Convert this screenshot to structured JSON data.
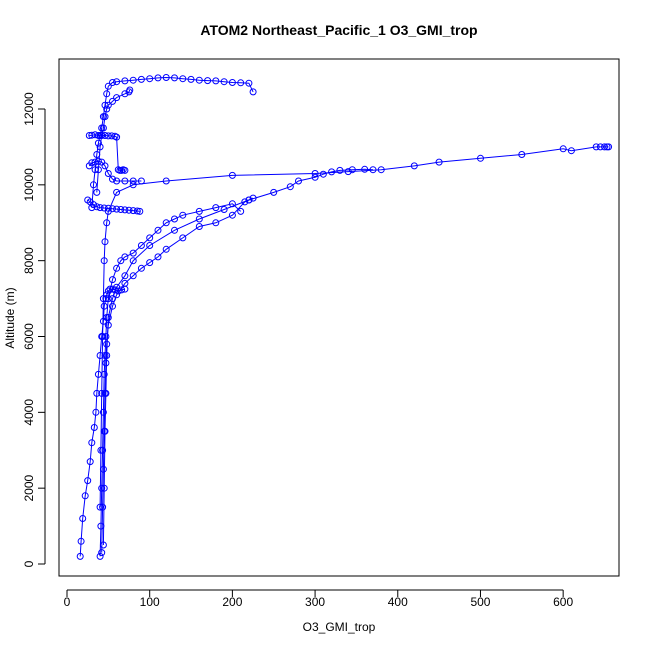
{
  "chart_data": {
    "type": "line",
    "title": "ATOM2 Northeast_Pacific_1 O3_GMI_trop",
    "xlabel": "O3_GMI_trop",
    "ylabel": "Altitude (m)",
    "xlim": [
      0,
      660
    ],
    "ylim": [
      0,
      13000
    ],
    "x_ticks": [
      0,
      100,
      200,
      300,
      400,
      500,
      600
    ],
    "y_ticks": [
      0,
      2000,
      4000,
      6000,
      8000,
      10000,
      12000
    ],
    "x_tick_labels": [
      "0",
      "100",
      "200",
      "300",
      "400",
      "500",
      "600"
    ],
    "y_tick_labels": [
      "0",
      "2000",
      "4000",
      "6000",
      "8000",
      "10000",
      "12000"
    ],
    "grid": false,
    "legend": "none",
    "series_color": "#0000ff",
    "marker": "open-circle",
    "series": [
      {
        "x": [
          16,
          17,
          19,
          22,
          25,
          28,
          30,
          33,
          35,
          36,
          38,
          40,
          42,
          44,
          45,
          47,
          48,
          50,
          52,
          55,
          58,
          62,
          66,
          70
        ],
        "y": [
          200,
          600,
          1200,
          1800,
          2200,
          2700,
          3200,
          3600,
          4000,
          4500,
          5000,
          5500,
          6000,
          6400,
          6800,
          7000,
          7100,
          7200,
          7250,
          7250,
          7230,
          7200,
          7230,
          7250
        ]
      },
      {
        "x": [
          40,
          41,
          42,
          43,
          44,
          45,
          46,
          47,
          48,
          50,
          55,
          60,
          65,
          70,
          80,
          90,
          100,
          110,
          120,
          130,
          140,
          160,
          180,
          200,
          210
        ],
        "y": [
          200,
          1000,
          2000,
          3000,
          4000,
          5000,
          5500,
          6000,
          6500,
          7000,
          7500,
          7800,
          8000,
          8100,
          8200,
          8400,
          8600,
          8800,
          9000,
          9100,
          9200,
          9300,
          9400,
          9500,
          9300
        ]
      },
      {
        "x": [
          42,
          43,
          44,
          45,
          46,
          47,
          48,
          50,
          55,
          60,
          70,
          80,
          90,
          100,
          110,
          120,
          140,
          160,
          180,
          200,
          215,
          220,
          225
        ],
        "y": [
          300,
          1500,
          2500,
          3500,
          4500,
          5300,
          5800,
          6300,
          6800,
          7100,
          7400,
          7600,
          7800,
          7950,
          8100,
          8300,
          8600,
          8900,
          9000,
          9200,
          9550,
          9600,
          9650
        ]
      },
      {
        "x": [
          44,
          45,
          46,
          47,
          48,
          50,
          55,
          60,
          70,
          80,
          100,
          130,
          160,
          190,
          220,
          250,
          270,
          280,
          300,
          310,
          320,
          330,
          345,
          360,
          370
        ],
        "y": [
          500,
          2000,
          3500,
          4500,
          5500,
          6500,
          7000,
          7300,
          7600,
          8000,
          8400,
          8800,
          9100,
          9350,
          9600,
          9800,
          9950,
          10100,
          10200,
          10280,
          10340,
          10380,
          10400,
          10410,
          10400
        ]
      },
      {
        "x": [
          40,
          41,
          42,
          43,
          44,
          45,
          46,
          48,
          50,
          60,
          80,
          120,
          200,
          300,
          340,
          380,
          420,
          450,
          500,
          550,
          600,
          610,
          640,
          645,
          650,
          653,
          655
        ],
        "y": [
          1500,
          3000,
          4500,
          6000,
          7000,
          8000,
          8500,
          9000,
          9300,
          9800,
          10000,
          10100,
          10250,
          10300,
          10350,
          10400,
          10500,
          10600,
          10700,
          10800,
          10950,
          10900,
          11000,
          11000,
          11000,
          11000,
          11000
        ]
      },
      {
        "x": [
          30,
          32,
          34,
          36,
          38,
          40,
          42,
          44,
          46,
          48,
          50,
          55,
          60,
          70,
          80,
          90,
          100,
          110,
          120,
          130,
          140,
          150,
          160,
          170,
          180,
          190,
          200,
          210,
          220,
          225
        ],
        "y": [
          9400,
          10000,
          10400,
          10800,
          11100,
          11300,
          11500,
          11800,
          12100,
          12400,
          12600,
          12700,
          12720,
          12740,
          12760,
          12780,
          12800,
          12820,
          12830,
          12820,
          12800,
          12780,
          12760,
          12750,
          12740,
          12720,
          12700,
          12690,
          12680,
          12450
        ]
      },
      {
        "x": [
          36,
          38,
          40,
          42,
          44,
          46,
          48,
          50,
          55,
          60,
          70,
          75,
          76
        ],
        "y": [
          9800,
          10400,
          11000,
          11300,
          11500,
          11800,
          12000,
          12100,
          12200,
          12300,
          12400,
          12450,
          12500
        ]
      },
      {
        "x": [
          27,
          30,
          34,
          38,
          42,
          46,
          50,
          55,
          60,
          70,
          80,
          90
        ],
        "y": [
          10500,
          10580,
          10600,
          10620,
          10600,
          10500,
          10300,
          10150,
          10100,
          10100,
          10100,
          10100
        ]
      },
      {
        "x": [
          25,
          28,
          32,
          36,
          40,
          45,
          50,
          55,
          60,
          65,
          70,
          75,
          80,
          85,
          88
        ],
        "y": [
          9600,
          9550,
          9480,
          9420,
          9400,
          9390,
          9380,
          9370,
          9360,
          9350,
          9340,
          9330,
          9320,
          9310,
          9300
        ]
      },
      {
        "x": [
          27,
          30,
          34,
          38,
          42,
          46,
          50,
          54,
          58,
          60,
          62,
          64,
          66,
          68,
          70
        ],
        "y": [
          11300,
          11310,
          11320,
          11300,
          11310,
          11300,
          11290,
          11290,
          11280,
          11260,
          10400,
          10380,
          10380,
          10400,
          10380
        ]
      }
    ]
  }
}
